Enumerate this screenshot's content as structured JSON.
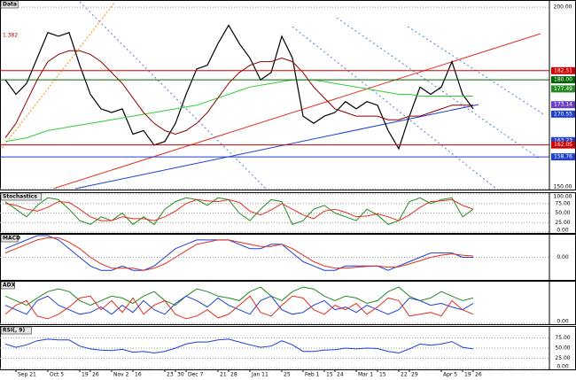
{
  "chart_data": [
    {
      "type": "line",
      "title": "Data",
      "annotation": "1.382",
      "ylim": [
        150,
        201.5
      ],
      "yticks": [
        {
          "value": 150,
          "label": "150.00"
        },
        {
          "value": 200,
          "label": "200.00"
        }
      ],
      "levels": [
        {
          "value": 182.51,
          "label": "182.51",
          "color": "#cc0000",
          "line": true
        },
        {
          "value": 180,
          "label": "180.00",
          "color": "#006400",
          "line": true
        },
        {
          "value": 177.49,
          "label": "177.49",
          "color": "#228b22",
          "line": false
        },
        {
          "value": 173.14,
          "label": "173.14",
          "color": "#6a3fbf",
          "line": false
        },
        {
          "value": 170.55,
          "label": "170.55",
          "color": "#1f3fcf",
          "line": false
        },
        {
          "value": 163.23,
          "label": "163.23",
          "color": "#1f3fcf",
          "line": false
        },
        {
          "value": 162.05,
          "label": "162.05",
          "color": "#cc0000",
          "line": true
        },
        {
          "value": 158.76,
          "label": "158.76",
          "color": "#1f3fcf",
          "line": true
        }
      ],
      "series": [
        {
          "color": "#000000",
          "values": [
            180,
            176,
            179,
            186,
            193,
            192,
            193,
            184,
            176,
            172,
            171,
            172,
            165,
            166,
            162,
            163,
            168,
            176,
            183,
            184,
            190,
            195,
            190,
            186,
            180,
            182,
            192,
            186,
            170,
            168,
            170,
            171,
            174,
            172,
            174,
            173,
            166,
            161,
            170,
            178,
            176,
            178,
            185,
            176,
            172
          ]
        },
        {
          "color": "#33cc33",
          "values": [
            163,
            163.5,
            164,
            165,
            166,
            166.5,
            167,
            167.5,
            168,
            168.5,
            169,
            169.5,
            170,
            170.5,
            171,
            171.5,
            172,
            172.5,
            173,
            174,
            175,
            176,
            177,
            178,
            178.5,
            179,
            179.5,
            180,
            180,
            180,
            179.5,
            179,
            178.5,
            178,
            177.5,
            177,
            176.5,
            176,
            176,
            175.5,
            175.5,
            175.5,
            175.5,
            175.5,
            175.5
          ]
        },
        {
          "color": "#8b0000",
          "values": [
            164,
            168,
            174,
            180,
            185,
            187,
            188,
            188,
            187,
            185,
            182,
            179,
            175,
            171,
            168,
            166,
            165,
            166,
            168,
            171,
            175,
            179,
            182,
            184,
            185,
            185,
            186,
            185,
            182,
            178,
            175,
            172,
            171,
            170,
            170,
            170,
            169,
            169,
            170,
            170,
            171,
            172,
            173,
            173,
            173
          ]
        }
      ]
    },
    {
      "type": "line",
      "title": "Stochastics",
      "ylim": [
        0,
        100
      ],
      "yticks": [
        {
          "value": 0,
          "label": "0.00"
        },
        {
          "value": 25,
          "label": "25.00"
        },
        {
          "value": 50,
          "label": "50.00"
        },
        {
          "value": 75,
          "label": "75.00"
        },
        {
          "value": 100,
          "label": "100.00"
        }
      ],
      "series": [
        {
          "color": "#228b22",
          "values": [
            80,
            60,
            40,
            70,
            90,
            85,
            60,
            30,
            20,
            40,
            30,
            50,
            20,
            40,
            20,
            60,
            80,
            90,
            85,
            70,
            90,
            85,
            50,
            30,
            60,
            85,
            80,
            20,
            30,
            60,
            70,
            50,
            40,
            30,
            60,
            45,
            20,
            30,
            80,
            90,
            75,
            85,
            90,
            40,
            60
          ]
        },
        {
          "color": "#e03020",
          "values": [
            75,
            70,
            60,
            55,
            65,
            80,
            78,
            60,
            40,
            30,
            30,
            40,
            35,
            35,
            30,
            40,
            55,
            75,
            85,
            82,
            80,
            85,
            78,
            55,
            45,
            58,
            75,
            60,
            45,
            35,
            55,
            60,
            52,
            40,
            42,
            48,
            40,
            30,
            45,
            65,
            80,
            82,
            85,
            70,
            60
          ]
        }
      ]
    },
    {
      "type": "line",
      "title": "MACD",
      "ylim": [
        -5,
        5
      ],
      "yticks": [
        {
          "value": 0,
          "label": "0.00"
        }
      ],
      "series": [
        {
          "color": "#1f3fcf",
          "values": [
            2,
            3,
            4,
            5,
            5,
            4,
            2,
            0,
            -2,
            -3,
            -3,
            -2,
            -3,
            -3,
            -2,
            0,
            2,
            3,
            4,
            4,
            4,
            4,
            3,
            2,
            2,
            3,
            3,
            1,
            -1,
            -2,
            -3,
            -3,
            -2,
            -2,
            -2,
            -2,
            -3,
            -2,
            -1,
            0,
            1,
            1,
            1,
            0,
            0
          ]
        },
        {
          "color": "#e03020",
          "values": [
            1,
            2,
            3,
            4,
            4.5,
            4.5,
            3.5,
            2,
            0,
            -1.5,
            -2.5,
            -2.5,
            -2.5,
            -3,
            -2.5,
            -1.5,
            0,
            1.5,
            3,
            3.5,
            4,
            4,
            3.5,
            3,
            2.5,
            2.5,
            3,
            2,
            0.5,
            -1,
            -2,
            -2.5,
            -2.5,
            -2.3,
            -2.1,
            -2,
            -2.3,
            -2.2,
            -1.5,
            -0.8,
            0,
            0.5,
            0.8,
            0.5,
            0.3
          ]
        }
      ]
    },
    {
      "type": "line",
      "title": "ADX",
      "ylim": [
        0,
        45
      ],
      "yticks": [
        {
          "value": 0,
          "label": "0.00"
        }
      ],
      "series": [
        {
          "color": "#228b22",
          "values": [
            30,
            25,
            20,
            28,
            35,
            38,
            35,
            25,
            20,
            25,
            30,
            28,
            22,
            30,
            35,
            25,
            20,
            30,
            38,
            35,
            30,
            28,
            25,
            35,
            40,
            30,
            25,
            35,
            40,
            38,
            30,
            25,
            30,
            28,
            22,
            25,
            35,
            40,
            30,
            25,
            28,
            35,
            30,
            25,
            28
          ]
        },
        {
          "color": "#1f3fcf",
          "values": [
            20,
            15,
            10,
            25,
            30,
            20,
            15,
            10,
            12,
            18,
            10,
            20,
            12,
            25,
            15,
            10,
            22,
            30,
            25,
            18,
            28,
            20,
            15,
            10,
            25,
            30,
            15,
            10,
            12,
            20,
            25,
            15,
            18,
            12,
            20,
            15,
            10,
            15,
            28,
            25,
            20,
            22,
            18,
            15,
            22
          ]
        },
        {
          "color": "#e03020",
          "values": [
            10,
            20,
            25,
            8,
            5,
            10,
            18,
            28,
            30,
            15,
            25,
            12,
            28,
            10,
            20,
            25,
            10,
            5,
            8,
            15,
            6,
            10,
            20,
            30,
            12,
            8,
            20,
            30,
            28,
            15,
            10,
            20,
            15,
            22,
            10,
            18,
            28,
            25,
            8,
            10,
            12,
            8,
            25,
            15,
            10
          ]
        }
      ]
    },
    {
      "type": "line",
      "title": "RSI(, 9)",
      "ylim": [
        0,
        100
      ],
      "yticks": [
        {
          "value": 0,
          "label": "0.00"
        },
        {
          "value": 25,
          "label": "25.00"
        },
        {
          "value": 50,
          "label": "50.00"
        },
        {
          "value": 75,
          "label": "75.00"
        }
      ],
      "categories": [
        null,
        "Sep 21",
        null,
        null,
        "Oct 5",
        null,
        null,
        "19",
        "26",
        null,
        "Nov 2",
        null,
        "16",
        null,
        null,
        "23",
        "30",
        "Dec 7",
        null,
        null,
        "21",
        "28",
        null,
        "Jan 11",
        null,
        null,
        "25",
        null,
        "Feb 1",
        null,
        "15",
        "24",
        null,
        "Mar 1",
        null,
        "15",
        null,
        "22",
        "29",
        null,
        null,
        "Apr 5",
        null,
        "19",
        "26"
      ],
      "series": [
        {
          "color": "#1f3fcf",
          "values": [
            60,
            52,
            58,
            68,
            72,
            70,
            70,
            55,
            48,
            45,
            44,
            47,
            40,
            42,
            38,
            42,
            50,
            60,
            65,
            65,
            70,
            72,
            65,
            58,
            52,
            55,
            68,
            58,
            42,
            42,
            45,
            46,
            50,
            48,
            50,
            49,
            42,
            38,
            48,
            60,
            57,
            60,
            66,
            52,
            48
          ]
        }
      ]
    }
  ]
}
